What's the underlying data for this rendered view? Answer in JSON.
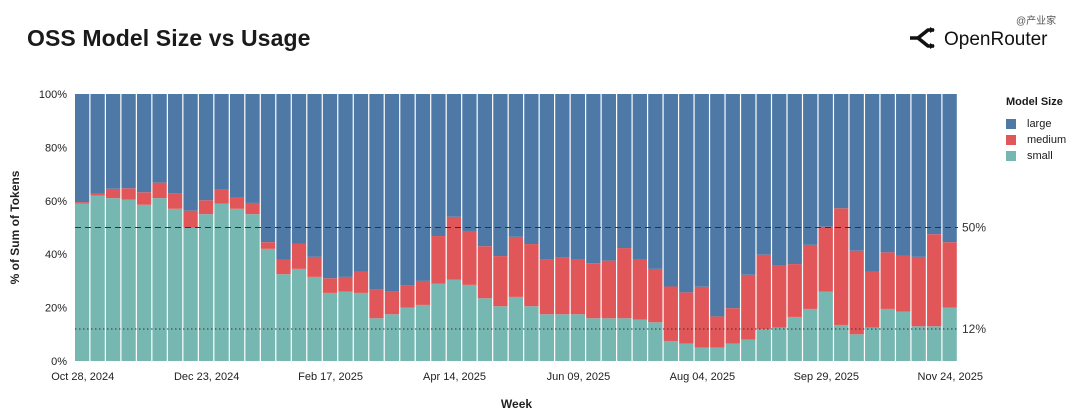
{
  "header": {
    "title": "OSS Model Size vs Usage",
    "brand_name": "OpenRouter",
    "brand_icon": "openrouter-logo-icon",
    "watermark": "@产业家"
  },
  "legend": {
    "title": "Model Size",
    "items": [
      {
        "label": "large",
        "color": "#4e79a7"
      },
      {
        "label": "medium",
        "color": "#e15759"
      },
      {
        "label": "small",
        "color": "#76b7b2"
      }
    ]
  },
  "chart_data": {
    "type": "bar",
    "stacked": true,
    "normalized": true,
    "xlabel": "Week",
    "ylabel": "% of Sum of Tokens",
    "ylim": [
      0,
      100
    ],
    "yticks": [
      "0%",
      "20%",
      "40%",
      "60%",
      "80%",
      "100%"
    ],
    "xtick_labels": [
      {
        "index": 0,
        "label": "Oct 28, 2024"
      },
      {
        "index": 8,
        "label": "Dec 23, 2024"
      },
      {
        "index": 16,
        "label": "Feb 17, 2025"
      },
      {
        "index": 24,
        "label": "Apr 14, 2025"
      },
      {
        "index": 32,
        "label": "Jun 09, 2025"
      },
      {
        "index": 40,
        "label": "Aug 04, 2025"
      },
      {
        "index": 48,
        "label": "Sep 29, 2025"
      },
      {
        "index": 56,
        "label": "Nov 24, 2025"
      }
    ],
    "series": [
      {
        "name": "small",
        "color": "#76b7b2",
        "values": [
          59,
          62,
          61,
          60.5,
          58.5,
          61,
          57,
          50,
          55,
          59,
          57,
          55,
          42,
          32.5,
          34.5,
          31.5,
          25.5,
          26,
          25.5,
          16,
          17.5,
          20,
          21,
          29,
          30.5,
          28.5,
          23.5,
          20.5,
          24,
          20.5,
          17.5,
          17.5,
          17.5,
          16,
          16,
          16,
          15.5,
          14.5,
          7.5,
          6.5,
          5,
          5,
          6.5,
          8,
          12,
          12.5,
          16.5,
          19.5,
          26,
          13.5,
          10,
          12.5,
          19.5,
          18.5,
          13,
          13,
          20
        ]
      },
      {
        "name": "medium",
        "color": "#e15759",
        "values": [
          0.5,
          0.7,
          3.5,
          4.2,
          4.7,
          5.8,
          5.9,
          6.3,
          5.2,
          5.1,
          4.1,
          4.2,
          2.5,
          5.5,
          9.5,
          7.5,
          5.5,
          5.5,
          8,
          10.7,
          8.7,
          8.2,
          9,
          17.8,
          23.5,
          20.2,
          19.5,
          18.8,
          22.5,
          23.3,
          20.4,
          21.2,
          20.7,
          20.6,
          21.6,
          26.3,
          22.7,
          20,
          20.4,
          19.2,
          22.8,
          11.7,
          13.3,
          24.3,
          27.8,
          23.3,
          19.8,
          24,
          24.3,
          43.7,
          31.3,
          21,
          21.2,
          21,
          26,
          34.5,
          24.5
        ]
      },
      {
        "name": "large",
        "color": "#4e79a7",
        "values": [
          40.5,
          37.3,
          35.5,
          35.3,
          36.8,
          33.2,
          37.1,
          43.7,
          39.8,
          35.9,
          38.9,
          40.8,
          55.5,
          62,
          56,
          61,
          69,
          68.5,
          66.5,
          73.3,
          73.8,
          71.8,
          70,
          53.2,
          46,
          51.3,
          57,
          60.7,
          53.5,
          56.2,
          62.1,
          61.3,
          61.8,
          63.4,
          62.4,
          57.7,
          61.8,
          65.5,
          72.1,
          74.3,
          72.2,
          83.3,
          80.2,
          67.7,
          60.2,
          64.2,
          63.7,
          56.5,
          49.7,
          42.8,
          58.7,
          66.5,
          59.3,
          60.5,
          61,
          52.5,
          55.5
        ]
      }
    ],
    "reference_lines": [
      {
        "label": "50%",
        "value": 50,
        "style": "dashed"
      },
      {
        "label": "12%",
        "value": 12,
        "style": "dotted"
      }
    ],
    "legend_position": "right"
  }
}
